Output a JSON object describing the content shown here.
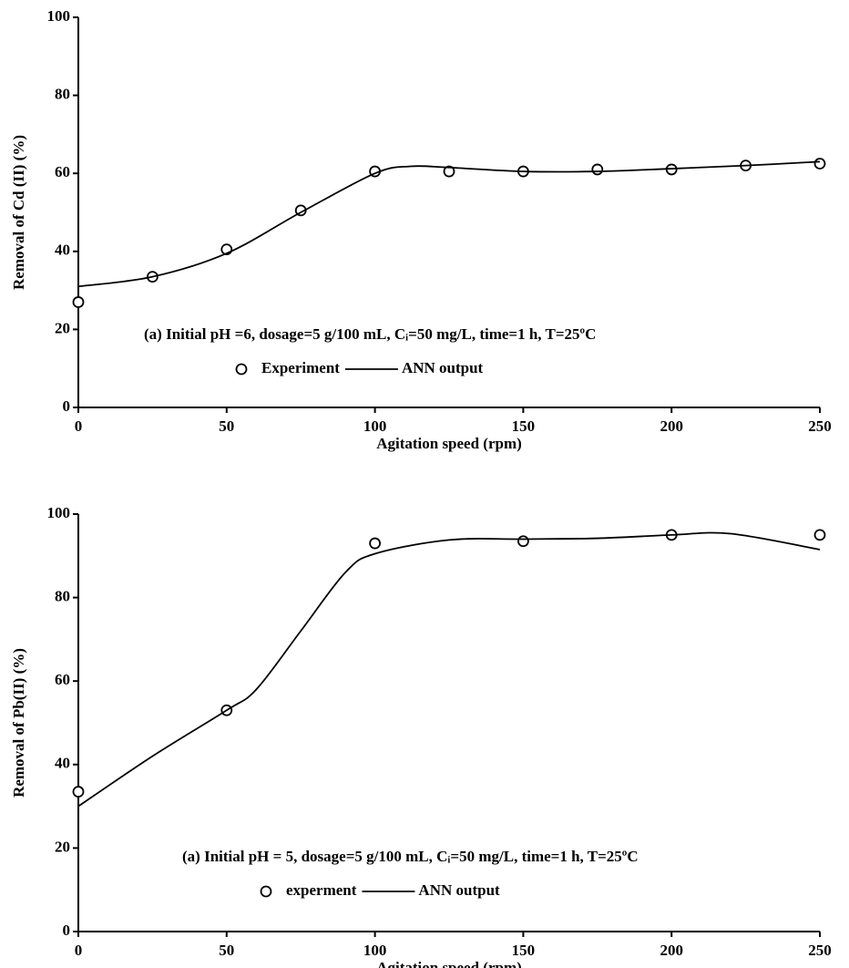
{
  "chart_data": [
    {
      "type": "line",
      "x_label": "Agitation speed (rpm)",
      "y_label": "Removal of Cd (II) (%)",
      "annotation": "(a) Initial pH =6, dosage=5 g/100 mL, Cᵢ=50 mg/L, time=1 h, T=25ºC",
      "xlim": [
        0,
        250
      ],
      "xticks": [
        0,
        50,
        100,
        150,
        200,
        250
      ],
      "ylim": [
        0,
        100
      ],
      "yticks": [
        0,
        20,
        40,
        60,
        80,
        100
      ],
      "series": [
        {
          "name": "Experiment",
          "color": "#000000",
          "marker": "circle",
          "x": [
            0,
            25,
            50,
            75,
            100,
            125,
            150,
            175,
            200,
            225,
            250
          ],
          "values": [
            27,
            33.5,
            40.5,
            50.5,
            60.5,
            60.5,
            60.5,
            61,
            61,
            62,
            62.5
          ]
        },
        {
          "name": "ANN output",
          "color": "#000000",
          "marker": "none",
          "x": [
            0,
            25,
            50,
            75,
            100,
            112,
            125,
            150,
            175,
            200,
            225,
            250
          ],
          "values": [
            31,
            33.5,
            39.5,
            50,
            60,
            61.8,
            61.5,
            60.5,
            60.5,
            61.2,
            62,
            63
          ]
        }
      ]
    },
    {
      "type": "line",
      "x_label": "Agitation speed (rpm)",
      "y_label": "Removal of Pb(II) (%)",
      "annotation": "(a) Initial pH = 5, dosage=5 g/100 mL, Cᵢ=50 mg/L, time=1 h, T=25ºC",
      "xlim": [
        0,
        250
      ],
      "xticks": [
        0,
        50,
        100,
        150,
        200,
        250
      ],
      "ylim": [
        0,
        100
      ],
      "yticks": [
        0,
        20,
        40,
        60,
        80,
        100
      ],
      "series": [
        {
          "name": "experment",
          "color": "#000000",
          "marker": "circle",
          "x": [
            0,
            50,
            100,
            150,
            200,
            250
          ],
          "values": [
            33.5,
            53,
            93,
            93.5,
            95,
            95
          ]
        },
        {
          "name": "ANN output",
          "color": "#000000",
          "marker": "none",
          "x": [
            0,
            25,
            50,
            60,
            75,
            90,
            100,
            125,
            150,
            175,
            200,
            220,
            250
          ],
          "values": [
            30,
            42,
            53,
            58,
            72,
            86,
            90.5,
            93.8,
            94,
            94.2,
            95,
            95.3,
            91.5
          ]
        }
      ]
    }
  ]
}
